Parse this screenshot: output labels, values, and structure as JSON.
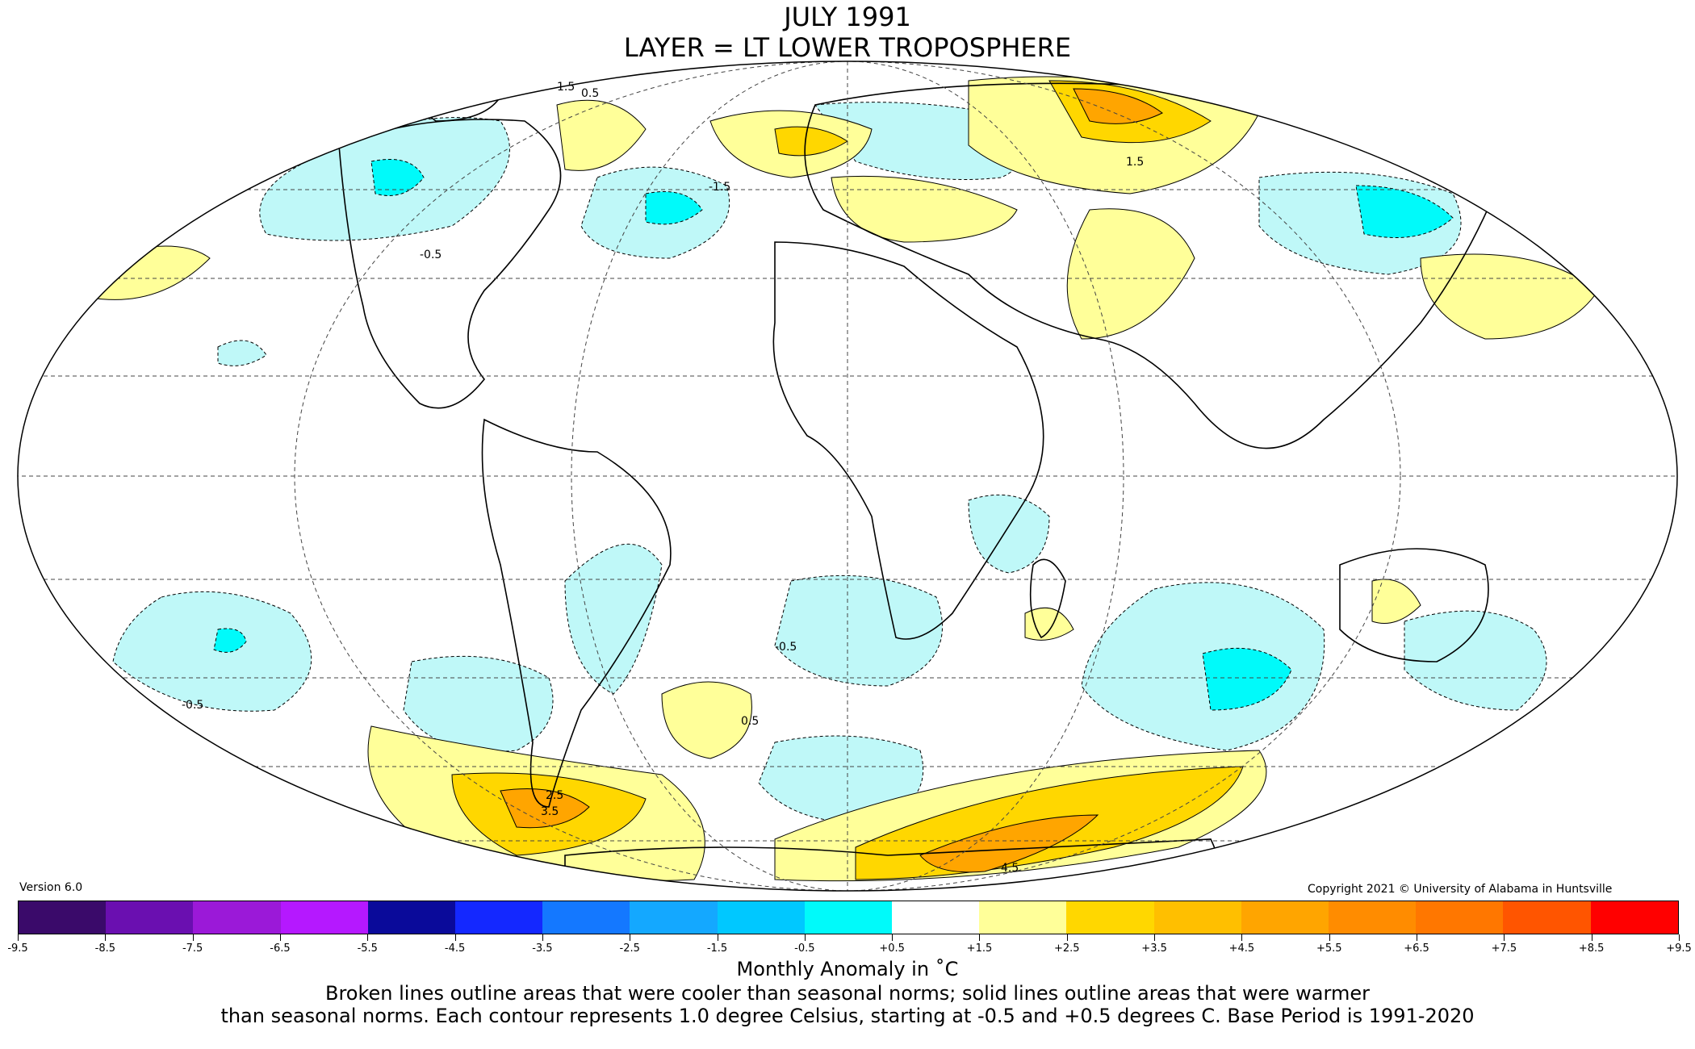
{
  "title": "JULY 1991",
  "subtitle": "LAYER = LT LOWER TROPOSPHERE",
  "version": "Version 6.0",
  "copyright": "Copyright 2021 © University of Alabama in Huntsville",
  "legend": {
    "title": "Monthly Anomaly in ˚C",
    "ticks": [
      "-9.5",
      "-8.5",
      "-7.5",
      "-6.5",
      "-5.5",
      "-4.5",
      "-3.5",
      "-2.5",
      "-1.5",
      "-0.5",
      "+0.5",
      "+1.5",
      "+2.5",
      "+3.5",
      "+4.5",
      "+5.5",
      "+6.5",
      "+7.5",
      "+8.5",
      "+9.5"
    ],
    "colors": [
      "#3a0a6a",
      "#6a0fb0",
      "#9b19d8",
      "#b518ff",
      "#0a0a9a",
      "#1428ff",
      "#1478ff",
      "#14a8ff",
      "#00c8ff",
      "#00fafa",
      "#bff8f8",
      "#ffffff",
      "#ffff99",
      "#ffd700",
      "#ffbf00",
      "#ffa500",
      "#ff8c00",
      "#ff7700",
      "#ff5500",
      "#ff0000",
      "#cc0000"
    ]
  },
  "caption": {
    "line1": "Broken lines outline areas that were cooler than seasonal norms; solid lines outline areas that were warmer",
    "line2": "than seasonal norms. Each contour represents 1.0 degree Celsius, starting at -0.5 and +0.5 degrees C. Base Period is 1991-2020"
  },
  "contour_labels": [
    "1.5",
    "0.5",
    "-0.5",
    "-1.5",
    "2.5",
    "3.5",
    "4.5",
    "-0.5",
    "-0.5",
    "0.5",
    "1.5"
  ]
}
